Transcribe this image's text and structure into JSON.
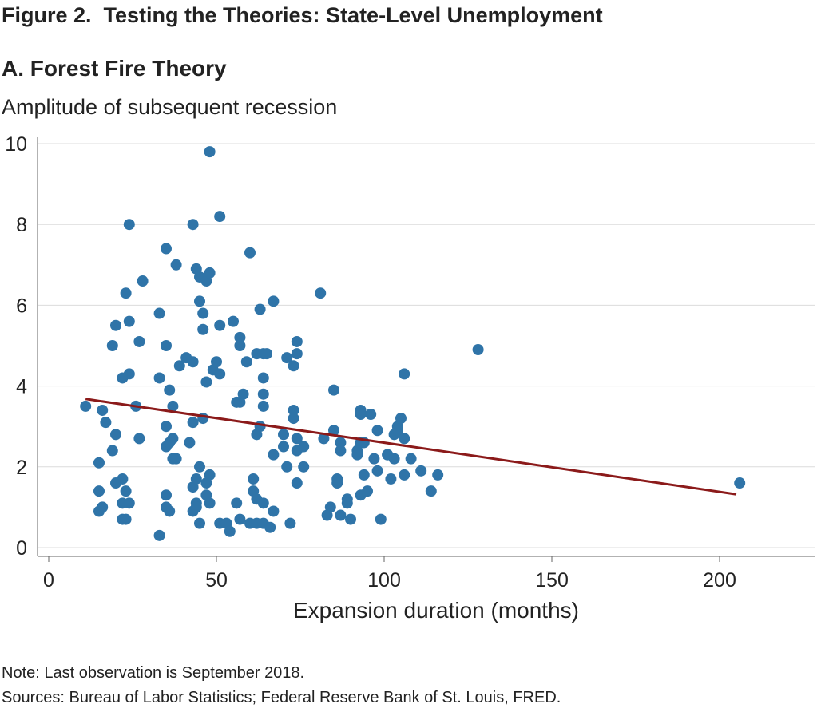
{
  "figure_title": "Figure 2.  Testing the Theories: State-Level Unemployment",
  "panel_title": "A. Forest Fire Theory",
  "note": "Note: Last observation is September 2018.",
  "sources": "Sources: Bureau of Labor Statistics; Federal Reserve Bank of St. Louis, FRED.",
  "colors": {
    "points": "#2f74a8",
    "trendline": "#8b1a1a",
    "grid": "#dcdcdc",
    "axis": "#666666"
  },
  "chart_data": {
    "type": "scatter",
    "ylabel": "Amplitude of subsequent recession",
    "xlabel": "Expansion duration (months)",
    "xlim": [
      -3,
      229
    ],
    "ylim": [
      -0.3,
      10.3
    ],
    "x_ticks": [
      0,
      50,
      100,
      150,
      200
    ],
    "y_ticks": [
      0,
      2,
      4,
      6,
      8,
      10
    ],
    "grid": "horizontal",
    "trendline": {
      "x": [
        11,
        205
      ],
      "y": [
        3.68,
        1.32
      ]
    },
    "points": [
      [
        11,
        3.5
      ],
      [
        15,
        2.1
      ],
      [
        15,
        1.4
      ],
      [
        15,
        0.9
      ],
      [
        16,
        1.0
      ],
      [
        16,
        3.4
      ],
      [
        17,
        3.1
      ],
      [
        19,
        5.0
      ],
      [
        19,
        2.4
      ],
      [
        20,
        5.5
      ],
      [
        20,
        2.8
      ],
      [
        20,
        1.6
      ],
      [
        22,
        4.2
      ],
      [
        22,
        1.7
      ],
      [
        22,
        1.1
      ],
      [
        22,
        0.7
      ],
      [
        23,
        6.3
      ],
      [
        23,
        1.4
      ],
      [
        23,
        0.7
      ],
      [
        24,
        8.0
      ],
      [
        24,
        5.6
      ],
      [
        24,
        4.3
      ],
      [
        24,
        1.1
      ],
      [
        26,
        3.5
      ],
      [
        27,
        5.1
      ],
      [
        27,
        2.7
      ],
      [
        28,
        6.6
      ],
      [
        33,
        5.8
      ],
      [
        33,
        4.2
      ],
      [
        33,
        0.3
      ],
      [
        35,
        7.4
      ],
      [
        35,
        5.0
      ],
      [
        35,
        3.0
      ],
      [
        35,
        2.5
      ],
      [
        35,
        1.3
      ],
      [
        35,
        1.0
      ],
      [
        36,
        3.9
      ],
      [
        36,
        2.6
      ],
      [
        36,
        0.9
      ],
      [
        37,
        3.5
      ],
      [
        37,
        2.7
      ],
      [
        37,
        2.2
      ],
      [
        38,
        7.0
      ],
      [
        38,
        2.2
      ],
      [
        39,
        4.5
      ],
      [
        41,
        4.7
      ],
      [
        42,
        2.6
      ],
      [
        43,
        8.0
      ],
      [
        43,
        4.6
      ],
      [
        43,
        3.1
      ],
      [
        43,
        1.5
      ],
      [
        43,
        0.9
      ],
      [
        44,
        6.9
      ],
      [
        44,
        1.7
      ],
      [
        44,
        1.1
      ],
      [
        44,
        1.0
      ],
      [
        45,
        6.7
      ],
      [
        45,
        6.1
      ],
      [
        45,
        2.0
      ],
      [
        45,
        0.6
      ],
      [
        46,
        5.8
      ],
      [
        46,
        5.4
      ],
      [
        46,
        3.2
      ],
      [
        47,
        6.6
      ],
      [
        47,
        4.1
      ],
      [
        47,
        1.6
      ],
      [
        47,
        1.3
      ],
      [
        48,
        9.8
      ],
      [
        48,
        6.8
      ],
      [
        48,
        1.8
      ],
      [
        48,
        1.1
      ],
      [
        49,
        4.4
      ],
      [
        50,
        4.6
      ],
      [
        51,
        8.2
      ],
      [
        51,
        5.5
      ],
      [
        51,
        4.3
      ],
      [
        51,
        0.6
      ],
      [
        53,
        0.6
      ],
      [
        54,
        0.4
      ],
      [
        55,
        5.6
      ],
      [
        56,
        3.6
      ],
      [
        56,
        1.1
      ],
      [
        57,
        5.2
      ],
      [
        57,
        5.0
      ],
      [
        57,
        3.6
      ],
      [
        57,
        0.7
      ],
      [
        58,
        3.8
      ],
      [
        59,
        4.6
      ],
      [
        60,
        7.3
      ],
      [
        60,
        0.6
      ],
      [
        61,
        1.7
      ],
      [
        61,
        1.4
      ],
      [
        62,
        4.8
      ],
      [
        62,
        2.8
      ],
      [
        62,
        1.2
      ],
      [
        62,
        0.6
      ],
      [
        63,
        5.9
      ],
      [
        63,
        3.0
      ],
      [
        64,
        4.8
      ],
      [
        64,
        4.2
      ],
      [
        64,
        3.8
      ],
      [
        64,
        3.5
      ],
      [
        64,
        1.1
      ],
      [
        64,
        0.6
      ],
      [
        65,
        4.8
      ],
      [
        66,
        0.5
      ],
      [
        67,
        6.1
      ],
      [
        67,
        2.3
      ],
      [
        67,
        0.9
      ],
      [
        70,
        2.8
      ],
      [
        70,
        2.5
      ],
      [
        71,
        4.7
      ],
      [
        71,
        2.0
      ],
      [
        72,
        0.6
      ],
      [
        73,
        4.5
      ],
      [
        73,
        3.4
      ],
      [
        73,
        3.2
      ],
      [
        74,
        5.1
      ],
      [
        74,
        4.8
      ],
      [
        74,
        2.7
      ],
      [
        74,
        2.4
      ],
      [
        74,
        1.6
      ],
      [
        76,
        2.5
      ],
      [
        76,
        2.0
      ],
      [
        81,
        6.3
      ],
      [
        82,
        2.7
      ],
      [
        83,
        0.8
      ],
      [
        84,
        1.0
      ],
      [
        85,
        3.9
      ],
      [
        85,
        2.9
      ],
      [
        86,
        1.7
      ],
      [
        86,
        1.6
      ],
      [
        87,
        2.6
      ],
      [
        87,
        2.4
      ],
      [
        87,
        0.8
      ],
      [
        89,
        1.2
      ],
      [
        89,
        1.1
      ],
      [
        90,
        0.7
      ],
      [
        92,
        2.4
      ],
      [
        92,
        2.3
      ],
      [
        93,
        3.4
      ],
      [
        93,
        3.3
      ],
      [
        93,
        2.6
      ],
      [
        93,
        1.3
      ],
      [
        94,
        2.6
      ],
      [
        94,
        1.8
      ],
      [
        95,
        1.4
      ],
      [
        96,
        3.3
      ],
      [
        97,
        2.2
      ],
      [
        98,
        2.9
      ],
      [
        98,
        1.9
      ],
      [
        99,
        0.7
      ],
      [
        101,
        2.3
      ],
      [
        101,
        2.3
      ],
      [
        102,
        1.7
      ],
      [
        103,
        2.8
      ],
      [
        103,
        2.2
      ],
      [
        104,
        3.0
      ],
      [
        104,
        2.9
      ],
      [
        105,
        3.2
      ],
      [
        106,
        4.3
      ],
      [
        106,
        2.7
      ],
      [
        106,
        1.8
      ],
      [
        108,
        2.2
      ],
      [
        111,
        1.9
      ],
      [
        114,
        1.4
      ],
      [
        116,
        1.8
      ],
      [
        128,
        4.9
      ],
      [
        206,
        1.6
      ]
    ]
  }
}
